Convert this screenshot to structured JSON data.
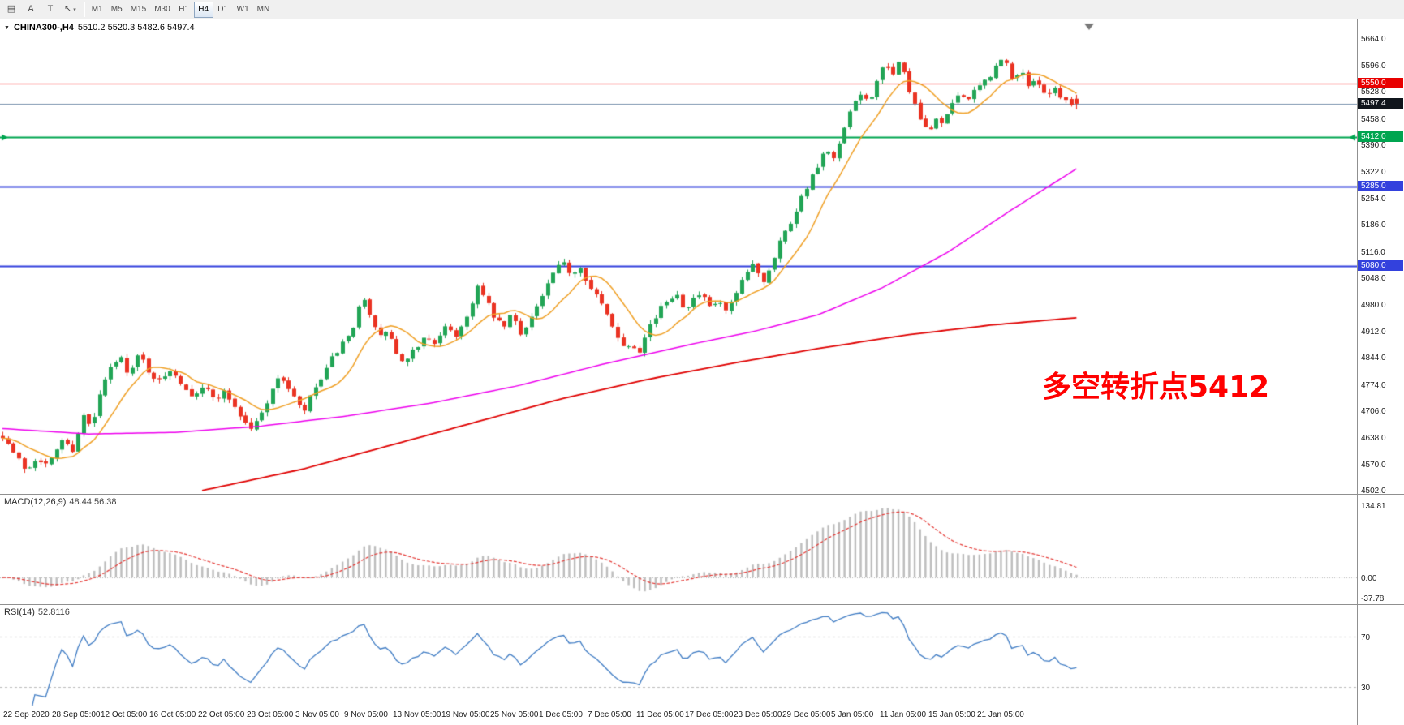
{
  "icons": {
    "window_menu": "▼",
    "tool_caret": "▾"
  },
  "toolbar": {
    "tools": [
      {
        "name": "charts-grid-icon",
        "glyph": "▤"
      },
      {
        "name": "label-tool-icon",
        "glyph": "A"
      },
      {
        "name": "text-tool-icon",
        "glyph": "T"
      },
      {
        "name": "arrow-tool-icon",
        "glyph": "↖",
        "caret": true
      }
    ],
    "timeframes": [
      "M1",
      "M5",
      "M15",
      "M30",
      "H1",
      "H4",
      "D1",
      "W1",
      "MN"
    ],
    "active_timeframe": "H4"
  },
  "chart": {
    "symbol_period": "CHINA300-,H4",
    "ohlc": "5510.2 5520.3 5482.6 5497.4",
    "annotation": "多空转折点5412",
    "price_axis_labels": [
      "5664.0",
      "5596.0",
      "5528.0",
      "5458.0",
      "5390.0",
      "5322.0",
      "5254.0",
      "5186.0",
      "5116.0",
      "5048.0",
      "4980.0",
      "4912.0",
      "4844.0",
      "4774.0",
      "4706.0",
      "4638.0",
      "4570.0",
      "4502.0"
    ],
    "levels": [
      {
        "value": 5550.0,
        "label": "5550.0",
        "color": "#ff0000",
        "width": 1,
        "badge_bg": "#e80000"
      },
      {
        "value": 5497.4,
        "label": "5497.4",
        "color": "#7791ad",
        "width": 1,
        "badge_bg": "#10151c"
      },
      {
        "value": 5412.0,
        "label": "5412.0",
        "color": "#00a550",
        "width": 2,
        "badge_bg": "#00a550",
        "arrows": true
      },
      {
        "value": 5285.0,
        "label": "5285.0",
        "color": "#3341dd",
        "width": 2,
        "badge_bg": "#3341dd"
      },
      {
        "value": 5080.0,
        "label": "5080.0",
        "color": "#3341dd",
        "width": 2,
        "badge_bg": "#3341dd"
      }
    ]
  },
  "macd": {
    "label": "MACD(12,26,9)",
    "values": "48.44 56.38",
    "axis_labels": [
      "134.81",
      "0.00",
      "-37.78"
    ]
  },
  "rsi": {
    "label": "RSI(14)",
    "value": "52.8116",
    "axis_labels": [
      "70",
      "30"
    ]
  },
  "time_axis": [
    "22 Sep 2020",
    "28 Sep 05:00",
    "12 Oct 05:00",
    "16 Oct 05:00",
    "22 Oct 05:00",
    "28 Oct 05:00",
    "3 Nov 05:00",
    "9 Nov 05:00",
    "13 Nov 05:00",
    "19 Nov 05:00",
    "25 Nov 05:00",
    "1 Dec 05:00",
    "7 Dec 05:00",
    "11 Dec 05:00",
    "17 Dec 05:00",
    "23 Dec 05:00",
    "29 Dec 05:00",
    "5 Jan 05:00",
    "11 Jan 05:00",
    "15 Jan 05:00",
    "21 Jan 05:00"
  ],
  "chart_data": {
    "type": "candlestick+indicators",
    "symbol": "CHINA300-",
    "period": "H4",
    "bars": 200,
    "seed": 7,
    "price_range": {
      "max": 5714,
      "min": 4494
    },
    "last_bar": {
      "open": 5510.2,
      "high": 5520.3,
      "low": 5482.6,
      "close": 5497.4
    },
    "close_path": [
      [
        0,
        4645
      ],
      [
        0.01,
        4600
      ],
      [
        0.022,
        4555
      ],
      [
        0.032,
        4590
      ],
      [
        0.042,
        4565
      ],
      [
        0.055,
        4635
      ],
      [
        0.065,
        4605
      ],
      [
        0.075,
        4695
      ],
      [
        0.083,
        4660
      ],
      [
        0.09,
        4745
      ],
      [
        0.1,
        4815
      ],
      [
        0.11,
        4845
      ],
      [
        0.118,
        4800
      ],
      [
        0.127,
        4855
      ],
      [
        0.137,
        4805
      ],
      [
        0.147,
        4780
      ],
      [
        0.157,
        4818
      ],
      [
        0.167,
        4778
      ],
      [
        0.177,
        4748
      ],
      [
        0.187,
        4772
      ],
      [
        0.197,
        4738
      ],
      [
        0.207,
        4758
      ],
      [
        0.217,
        4715
      ],
      [
        0.224,
        4682
      ],
      [
        0.232,
        4660
      ],
      [
        0.242,
        4705
      ],
      [
        0.252,
        4772
      ],
      [
        0.26,
        4795
      ],
      [
        0.27,
        4748
      ],
      [
        0.28,
        4700
      ],
      [
        0.29,
        4762
      ],
      [
        0.3,
        4802
      ],
      [
        0.308,
        4850
      ],
      [
        0.317,
        4880
      ],
      [
        0.327,
        4915
      ],
      [
        0.335,
        5012
      ],
      [
        0.342,
        4958
      ],
      [
        0.35,
        4890
      ],
      [
        0.358,
        4918
      ],
      [
        0.366,
        4858
      ],
      [
        0.374,
        4822
      ],
      [
        0.384,
        4868
      ],
      [
        0.394,
        4898
      ],
      [
        0.404,
        4882
      ],
      [
        0.414,
        4928
      ],
      [
        0.422,
        4902
      ],
      [
        0.432,
        4948
      ],
      [
        0.442,
        5028
      ],
      [
        0.45,
        4988
      ],
      [
        0.458,
        4948
      ],
      [
        0.466,
        4918
      ],
      [
        0.474,
        4958
      ],
      [
        0.482,
        4905
      ],
      [
        0.492,
        4948
      ],
      [
        0.502,
        4998
      ],
      [
        0.512,
        5058
      ],
      [
        0.522,
        5088
      ],
      [
        0.53,
        5058
      ],
      [
        0.538,
        5082
      ],
      [
        0.546,
        5028
      ],
      [
        0.554,
        4998
      ],
      [
        0.562,
        4958
      ],
      [
        0.57,
        4918
      ],
      [
        0.578,
        4872
      ],
      [
        0.586,
        4882
      ],
      [
        0.592,
        4858
      ],
      [
        0.6,
        4918
      ],
      [
        0.608,
        4948
      ],
      [
        0.617,
        4988
      ],
      [
        0.627,
        5012
      ],
      [
        0.635,
        4972
      ],
      [
        0.642,
        4992
      ],
      [
        0.65,
        5008
      ],
      [
        0.658,
        4972
      ],
      [
        0.666,
        4988
      ],
      [
        0.674,
        4962
      ],
      [
        0.682,
        4998
      ],
      [
        0.692,
        5058
      ],
      [
        0.7,
        5088
      ],
      [
        0.708,
        5038
      ],
      [
        0.716,
        5088
      ],
      [
        0.724,
        5148
      ],
      [
        0.732,
        5182
      ],
      [
        0.742,
        5248
      ],
      [
        0.75,
        5292
      ],
      [
        0.758,
        5328
      ],
      [
        0.766,
        5378
      ],
      [
        0.774,
        5352
      ],
      [
        0.782,
        5418
      ],
      [
        0.79,
        5478
      ],
      [
        0.798,
        5528
      ],
      [
        0.806,
        5498
      ],
      [
        0.814,
        5558
      ],
      [
        0.822,
        5598
      ],
      [
        0.828,
        5558
      ],
      [
        0.834,
        5612
      ],
      [
        0.84,
        5568
      ],
      [
        0.848,
        5498
      ],
      [
        0.854,
        5458
      ],
      [
        0.862,
        5418
      ],
      [
        0.87,
        5468
      ],
      [
        0.876,
        5438
      ],
      [
        0.884,
        5498
      ],
      [
        0.892,
        5528
      ],
      [
        0.9,
        5508
      ],
      [
        0.908,
        5538
      ],
      [
        0.916,
        5558
      ],
      [
        0.924,
        5588
      ],
      [
        0.932,
        5618
      ],
      [
        0.94,
        5558
      ],
      [
        0.948,
        5588
      ],
      [
        0.956,
        5538
      ],
      [
        0.964,
        5558
      ],
      [
        0.972,
        5518
      ],
      [
        0.98,
        5538
      ],
      [
        0.988,
        5508
      ],
      [
        1,
        5497
      ]
    ],
    "ma_fast": {
      "color": "#f0a025",
      "period": 10
    },
    "ma_mid": {
      "color": "#ee00ee",
      "path": [
        [
          0,
          4662
        ],
        [
          0.08,
          4648
        ],
        [
          0.16,
          4652
        ],
        [
          0.24,
          4668
        ],
        [
          0.32,
          4694
        ],
        [
          0.4,
          4728
        ],
        [
          0.48,
          4772
        ],
        [
          0.56,
          4828
        ],
        [
          0.64,
          4878
        ],
        [
          0.7,
          4912
        ],
        [
          0.76,
          4955
        ],
        [
          0.82,
          5025
        ],
        [
          0.88,
          5115
        ],
        [
          0.94,
          5225
        ],
        [
          1,
          5330
        ]
      ]
    },
    "ma_slow": {
      "color": "#e00000",
      "path": [
        [
          0.185,
          4502
        ],
        [
          0.28,
          4558
        ],
        [
          0.36,
          4618
        ],
        [
          0.44,
          4678
        ],
        [
          0.52,
          4738
        ],
        [
          0.6,
          4788
        ],
        [
          0.68,
          4830
        ],
        [
          0.76,
          4868
        ],
        [
          0.84,
          4902
        ],
        [
          0.92,
          4928
        ],
        [
          1,
          4947
        ]
      ]
    },
    "candle_up_color": "#22a556",
    "candle_down_color": "#ea3323",
    "macd_range": {
      "max": 155,
      "min": -50
    },
    "macd_histogram_color": "#bdbdbd",
    "macd_signal_color": "#e53935",
    "rsi_range": {
      "max": 95,
      "min": 15
    },
    "rsi_levels": [
      70,
      30
    ],
    "rsi_color": "#3f7cc4"
  }
}
